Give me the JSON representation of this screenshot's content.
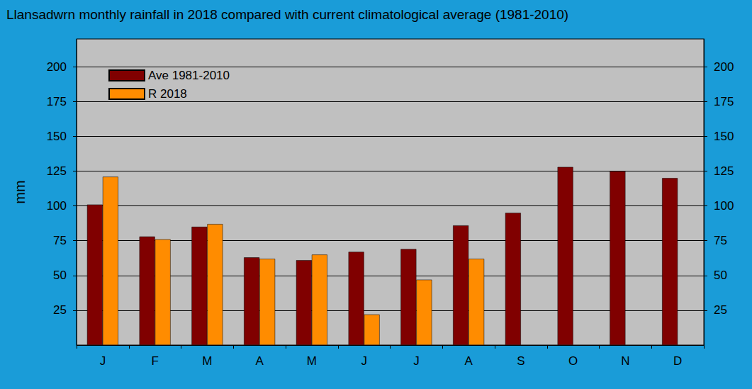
{
  "chart_data": {
    "type": "bar",
    "title": "Llansadwrn monthly rainfall in 2018 compared with current climatological average (1981-2010)",
    "y_label": "mm",
    "categories": [
      "J",
      "F",
      "M",
      "A",
      "M",
      "J",
      "J",
      "A",
      "S",
      "O",
      "N",
      "D"
    ],
    "series": [
      {
        "name": "Ave 1981-2010",
        "color": "#800000",
        "values": [
          101,
          78,
          85,
          63,
          61,
          67,
          69,
          86,
          95,
          128,
          125,
          120
        ]
      },
      {
        "name": "R 2018",
        "color": "#ff8c00",
        "values": [
          121,
          76,
          87,
          62,
          65,
          22,
          47,
          62,
          null,
          null,
          null,
          null
        ]
      }
    ],
    "ylim": [
      0,
      220
    ],
    "yticks": [
      25,
      50,
      75,
      100,
      125,
      150,
      175,
      200
    ],
    "grid": true,
    "legend": "upper left"
  }
}
